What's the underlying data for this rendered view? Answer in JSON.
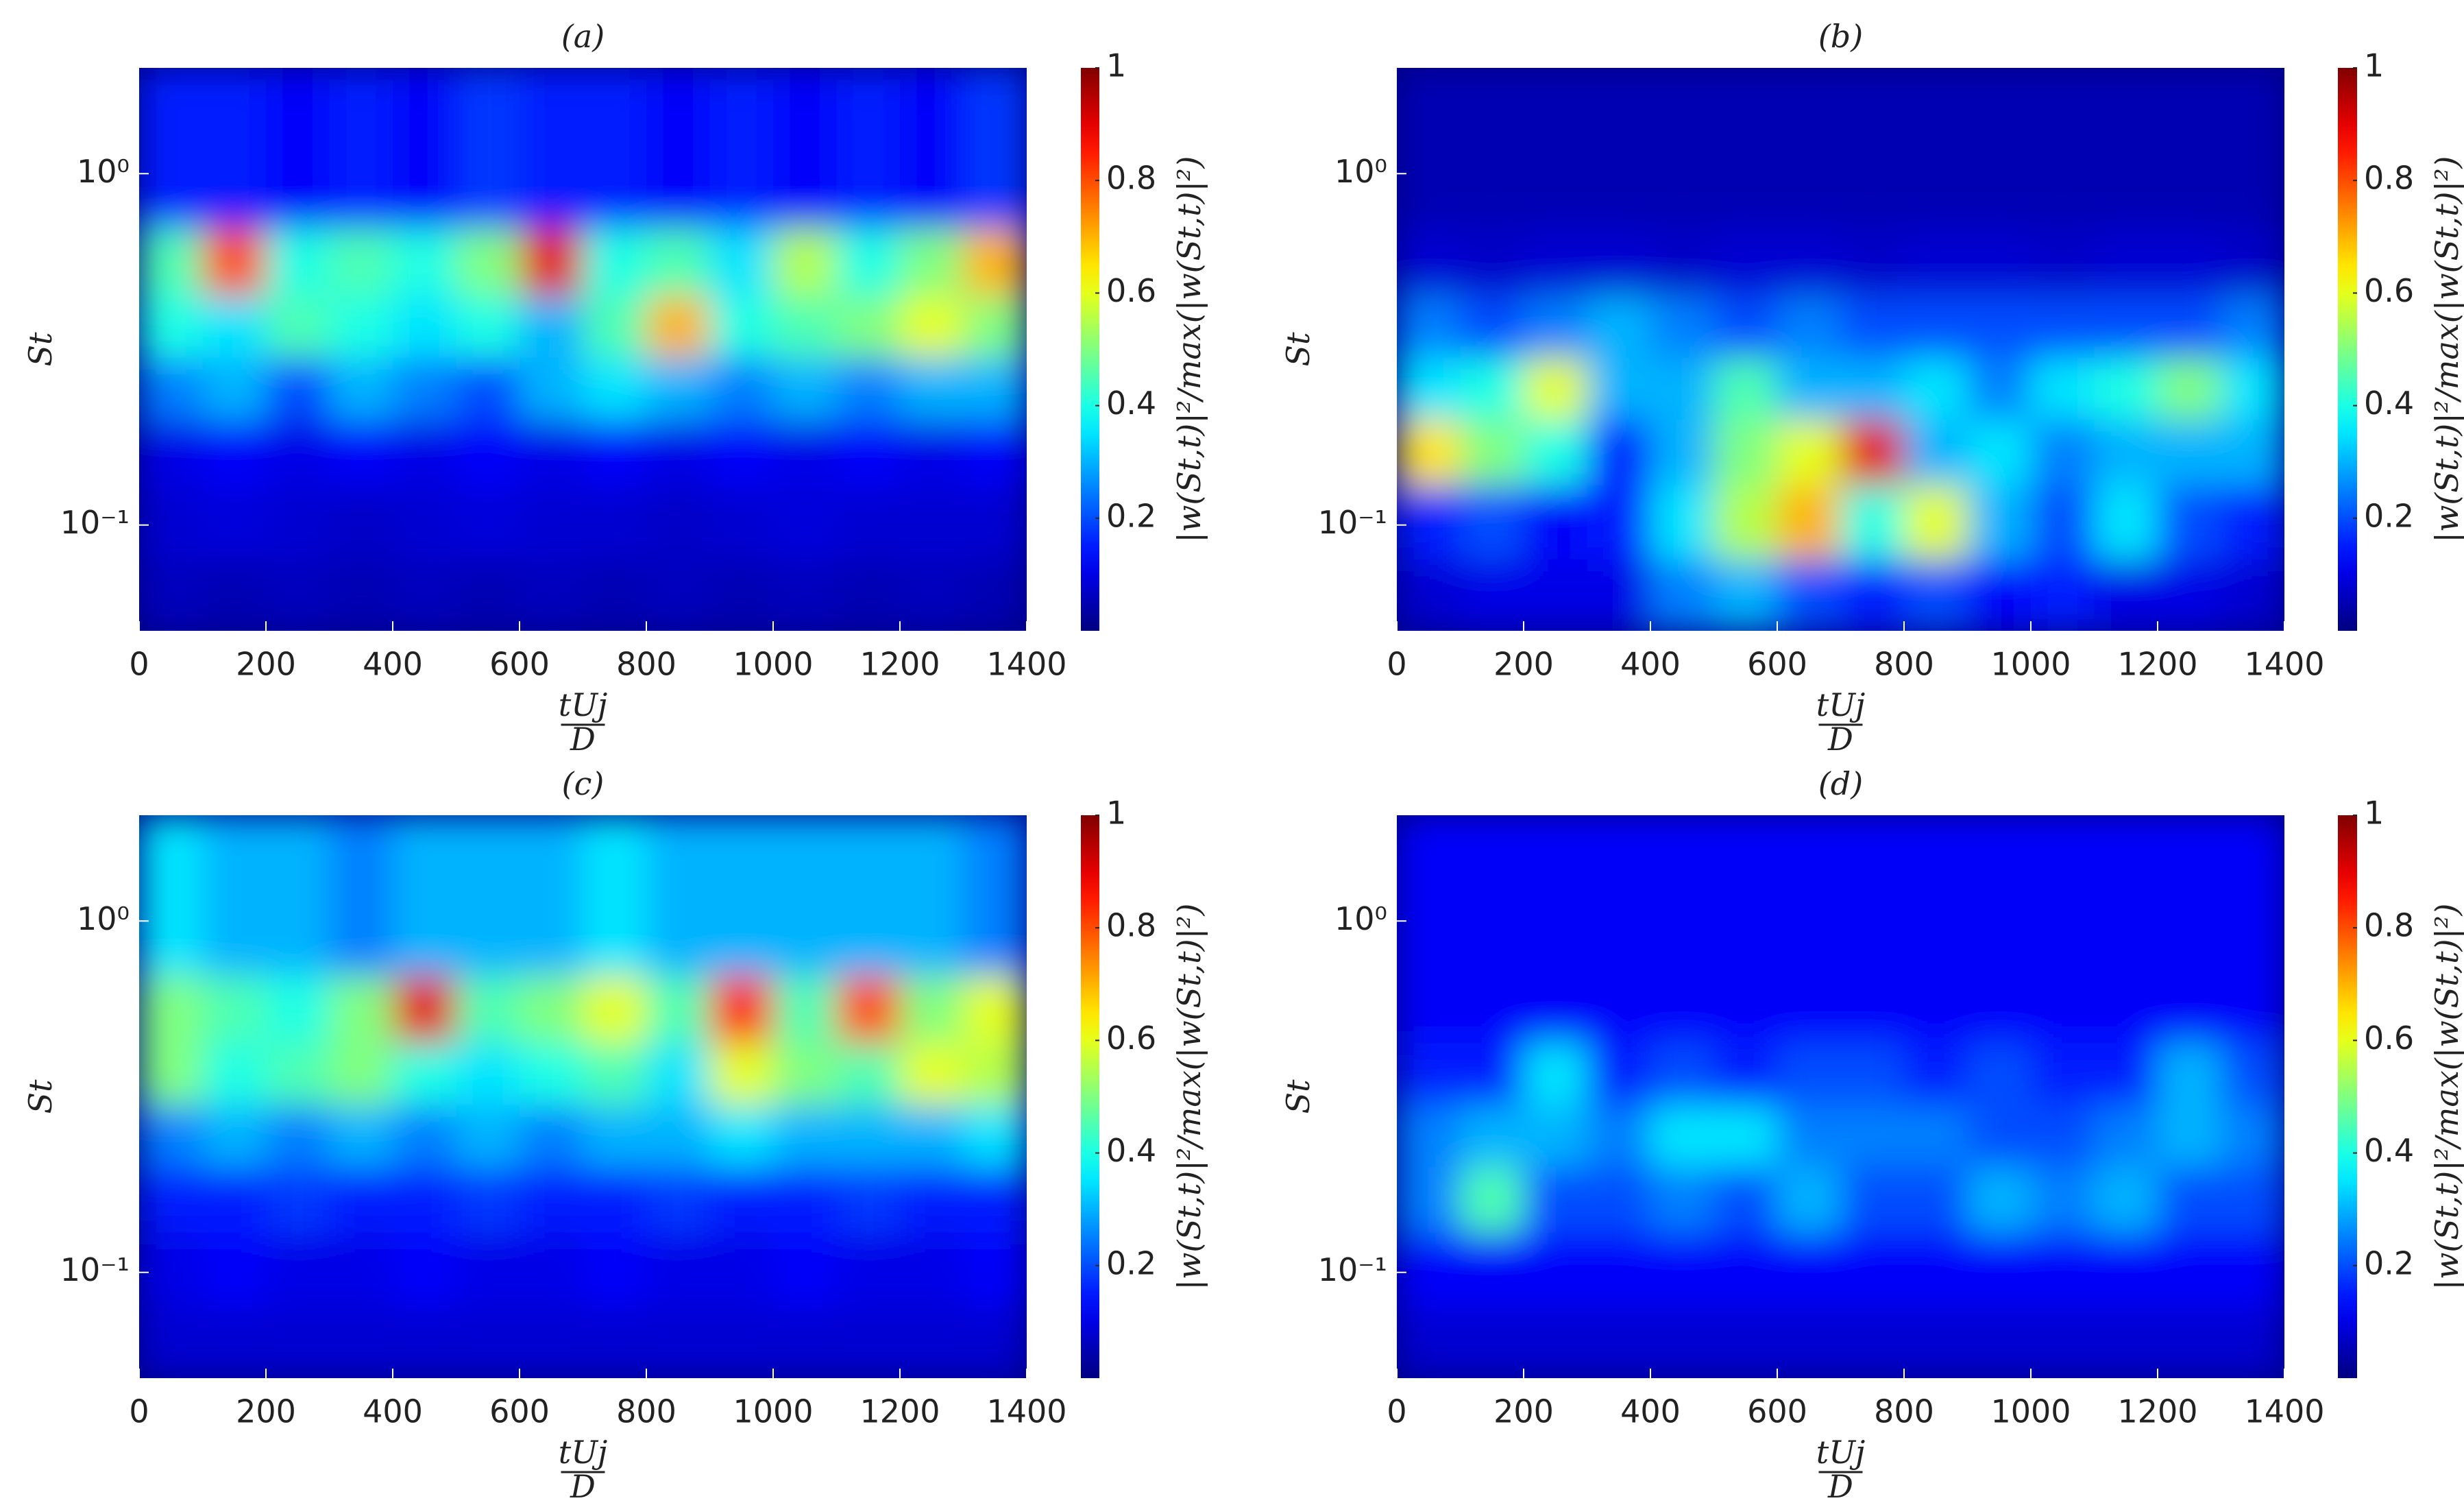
{
  "chart_data": [
    {
      "type": "heatmap",
      "title": "(a)",
      "ylabel": "St",
      "xlabel": {
        "numerator": "tUj",
        "denominator": "D"
      },
      "colorbar_label": "|w(St,t)|²/max(|w(St,t)|²)",
      "colormap": "jet",
      "yscale": "log",
      "xlim": [
        0,
        1400
      ],
      "xticks": [
        0,
        200,
        400,
        600,
        800,
        1000,
        1200,
        1400
      ],
      "ylim": [
        0.05,
        2
      ],
      "yticks": [
        {
          "value": 0.1,
          "label": "10⁻¹"
        },
        {
          "value": 1,
          "label": "10⁰"
        }
      ],
      "clim": [
        0,
        1
      ],
      "cticks": [
        0.2,
        0.4,
        0.6,
        0.8,
        1
      ],
      "x_edges": [
        0,
        100,
        200,
        300,
        400,
        500,
        600,
        700,
        800,
        900,
        1000,
        1100,
        1200,
        1300,
        1400
      ],
      "y_edges": [
        0.05,
        0.08,
        0.13,
        0.2,
        0.3,
        0.45,
        0.7,
        2
      ],
      "z": [
        [
          0.06,
          0.05,
          0.06,
          0.05,
          0.06,
          0.05,
          0.06,
          0.05,
          0.06,
          0.05,
          0.06,
          0.05,
          0.06,
          0.05
        ],
        [
          0.08,
          0.09,
          0.08,
          0.07,
          0.08,
          0.09,
          0.08,
          0.08,
          0.07,
          0.08,
          0.09,
          0.08,
          0.08,
          0.08
        ],
        [
          0.1,
          0.12,
          0.1,
          0.12,
          0.1,
          0.12,
          0.1,
          0.12,
          0.1,
          0.12,
          0.1,
          0.12,
          0.1,
          0.12
        ],
        [
          0.25,
          0.3,
          0.2,
          0.3,
          0.25,
          0.2,
          0.3,
          0.35,
          0.3,
          0.25,
          0.3,
          0.25,
          0.3,
          0.3
        ],
        [
          0.4,
          0.35,
          0.45,
          0.4,
          0.35,
          0.4,
          0.3,
          0.45,
          0.7,
          0.4,
          0.45,
          0.5,
          0.6,
          0.5
        ],
        [
          0.45,
          0.8,
          0.4,
          0.45,
          0.4,
          0.5,
          0.9,
          0.4,
          0.45,
          0.35,
          0.55,
          0.4,
          0.5,
          0.7
        ],
        [
          0.15,
          0.15,
          0.12,
          0.15,
          0.12,
          0.18,
          0.15,
          0.15,
          0.12,
          0.15,
          0.12,
          0.15,
          0.12,
          0.18
        ]
      ]
    },
    {
      "type": "heatmap",
      "title": "(b)",
      "ylabel": "St",
      "xlabel": {
        "numerator": "tUj",
        "denominator": "D"
      },
      "colorbar_label": "|w(St,t)|²/max(|w(St,t)|²)",
      "colormap": "jet",
      "yscale": "log",
      "xlim": [
        0,
        1400
      ],
      "xticks": [
        0,
        200,
        400,
        600,
        800,
        1000,
        1200,
        1400
      ],
      "ylim": [
        0.05,
        2
      ],
      "yticks": [
        {
          "value": 0.1,
          "label": "10⁻¹"
        },
        {
          "value": 1,
          "label": "10⁰"
        }
      ],
      "clim": [
        0,
        1
      ],
      "cticks": [
        0.2,
        0.4,
        0.6,
        0.8,
        1
      ],
      "x_edges": [
        0,
        100,
        200,
        300,
        400,
        500,
        600,
        700,
        800,
        900,
        1000,
        1100,
        1200,
        1300,
        1400
      ],
      "y_edges": [
        0.05,
        0.08,
        0.13,
        0.2,
        0.3,
        0.45,
        0.7,
        2
      ],
      "z": [
        [
          0.08,
          0.1,
          0.1,
          0.1,
          0.25,
          0.3,
          0.2,
          0.15,
          0.2,
          0.12,
          0.15,
          0.1,
          0.1,
          0.08
        ],
        [
          0.15,
          0.2,
          0.12,
          0.15,
          0.35,
          0.55,
          0.7,
          0.4,
          0.6,
          0.3,
          0.2,
          0.35,
          0.2,
          0.15
        ],
        [
          0.65,
          0.5,
          0.4,
          0.15,
          0.3,
          0.5,
          0.6,
          0.9,
          0.3,
          0.35,
          0.25,
          0.3,
          0.3,
          0.3
        ],
        [
          0.35,
          0.4,
          0.6,
          0.3,
          0.3,
          0.45,
          0.3,
          0.3,
          0.35,
          0.25,
          0.35,
          0.4,
          0.5,
          0.35
        ],
        [
          0.25,
          0.2,
          0.25,
          0.3,
          0.25,
          0.2,
          0.25,
          0.2,
          0.2,
          0.2,
          0.2,
          0.2,
          0.2,
          0.25
        ],
        [
          0.08,
          0.07,
          0.08,
          0.08,
          0.07,
          0.08,
          0.08,
          0.07,
          0.08,
          0.08,
          0.07,
          0.08,
          0.08,
          0.07
        ],
        [
          0.05,
          0.05,
          0.05,
          0.05,
          0.05,
          0.05,
          0.05,
          0.05,
          0.05,
          0.05,
          0.05,
          0.05,
          0.05,
          0.05
        ]
      ]
    },
    {
      "type": "heatmap",
      "title": "(c)",
      "ylabel": "St",
      "xlabel": {
        "numerator": "tUj",
        "denominator": "D"
      },
      "colorbar_label": "|w(St,t)|²/max(|w(St,t)|²)",
      "colormap": "jet",
      "yscale": "log",
      "xlim": [
        0,
        1400
      ],
      "xticks": [
        0,
        200,
        400,
        600,
        800,
        1000,
        1200,
        1400
      ],
      "ylim": [
        0.05,
        2
      ],
      "yticks": [
        {
          "value": 0.1,
          "label": "10⁻¹"
        },
        {
          "value": 1,
          "label": "10⁰"
        }
      ],
      "clim": [
        0,
        1
      ],
      "cticks": [
        0.2,
        0.4,
        0.6,
        0.8,
        1
      ],
      "x_edges": [
        0,
        100,
        200,
        300,
        400,
        500,
        600,
        700,
        800,
        900,
        1000,
        1100,
        1200,
        1300,
        1400
      ],
      "y_edges": [
        0.05,
        0.08,
        0.13,
        0.2,
        0.3,
        0.45,
        0.7,
        2
      ],
      "z": [
        [
          0.08,
          0.08,
          0.08,
          0.08,
          0.08,
          0.08,
          0.08,
          0.08,
          0.08,
          0.08,
          0.08,
          0.08,
          0.08,
          0.08
        ],
        [
          0.1,
          0.12,
          0.1,
          0.1,
          0.12,
          0.1,
          0.1,
          0.12,
          0.1,
          0.1,
          0.12,
          0.1,
          0.1,
          0.12
        ],
        [
          0.15,
          0.15,
          0.18,
          0.15,
          0.15,
          0.18,
          0.15,
          0.15,
          0.18,
          0.15,
          0.15,
          0.18,
          0.15,
          0.15
        ],
        [
          0.25,
          0.3,
          0.25,
          0.3,
          0.25,
          0.3,
          0.25,
          0.3,
          0.3,
          0.35,
          0.3,
          0.3,
          0.3,
          0.35
        ],
        [
          0.5,
          0.4,
          0.45,
          0.5,
          0.4,
          0.35,
          0.4,
          0.45,
          0.35,
          0.6,
          0.5,
          0.45,
          0.6,
          0.55
        ],
        [
          0.5,
          0.45,
          0.4,
          0.5,
          0.9,
          0.45,
          0.5,
          0.6,
          0.45,
          0.85,
          0.45,
          0.8,
          0.5,
          0.6
        ],
        [
          0.35,
          0.3,
          0.3,
          0.25,
          0.3,
          0.3,
          0.3,
          0.35,
          0.3,
          0.3,
          0.3,
          0.3,
          0.3,
          0.25
        ]
      ]
    },
    {
      "type": "heatmap",
      "title": "(d)",
      "ylabel": "St",
      "xlabel": {
        "numerator": "tUj",
        "denominator": "D"
      },
      "colorbar_label": "|w(St,t)|²/max(|w(St,t)|²)",
      "colormap": "jet",
      "yscale": "log",
      "xlim": [
        0,
        1400
      ],
      "xticks": [
        0,
        200,
        400,
        600,
        800,
        1000,
        1200,
        1400
      ],
      "ylim": [
        0.05,
        2
      ],
      "yticks": [
        {
          "value": 0.1,
          "label": "10⁻¹"
        },
        {
          "value": 1,
          "label": "10⁰"
        }
      ],
      "clim": [
        0,
        1
      ],
      "cticks": [
        0.2,
        0.4,
        0.6,
        0.8,
        1
      ],
      "x_edges": [
        0,
        100,
        200,
        300,
        400,
        500,
        600,
        700,
        800,
        900,
        1000,
        1100,
        1200,
        1300,
        1400
      ],
      "y_edges": [
        0.05,
        0.08,
        0.13,
        0.2,
        0.3,
        0.45,
        0.7,
        2
      ],
      "z": [
        [
          0.08,
          0.08,
          0.08,
          0.08,
          0.08,
          0.08,
          0.08,
          0.08,
          0.08,
          0.08,
          0.08,
          0.08,
          0.08,
          0.08
        ],
        [
          0.12,
          0.12,
          0.12,
          0.12,
          0.12,
          0.12,
          0.12,
          0.12,
          0.12,
          0.12,
          0.12,
          0.12,
          0.12,
          0.12
        ],
        [
          0.25,
          0.45,
          0.2,
          0.2,
          0.25,
          0.2,
          0.3,
          0.2,
          0.2,
          0.3,
          0.25,
          0.3,
          0.2,
          0.2
        ],
        [
          0.25,
          0.3,
          0.3,
          0.25,
          0.35,
          0.35,
          0.25,
          0.25,
          0.25,
          0.2,
          0.2,
          0.25,
          0.3,
          0.25
        ],
        [
          0.15,
          0.15,
          0.35,
          0.15,
          0.2,
          0.15,
          0.2,
          0.2,
          0.15,
          0.2,
          0.15,
          0.15,
          0.3,
          0.2
        ],
        [
          0.12,
          0.12,
          0.12,
          0.12,
          0.12,
          0.12,
          0.12,
          0.12,
          0.12,
          0.12,
          0.12,
          0.12,
          0.12,
          0.12
        ],
        [
          0.12,
          0.12,
          0.12,
          0.12,
          0.12,
          0.12,
          0.12,
          0.12,
          0.12,
          0.12,
          0.12,
          0.12,
          0.12,
          0.12
        ]
      ]
    }
  ]
}
